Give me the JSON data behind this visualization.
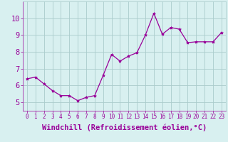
{
  "x": [
    0,
    1,
    2,
    3,
    4,
    5,
    6,
    7,
    8,
    9,
    10,
    11,
    12,
    13,
    14,
    15,
    16,
    17,
    18,
    19,
    20,
    21,
    22,
    23
  ],
  "y": [
    6.4,
    6.5,
    6.1,
    5.7,
    5.4,
    5.4,
    5.1,
    5.3,
    5.4,
    6.6,
    7.85,
    7.45,
    7.75,
    7.95,
    9.0,
    10.3,
    9.05,
    9.45,
    9.35,
    8.55,
    8.6,
    8.6,
    8.6,
    9.15
  ],
  "line_color": "#990099",
  "marker": "*",
  "marker_size": 3,
  "bg_color": "#d8f0f0",
  "grid_color": "#aacccc",
  "xlabel": "Windchill (Refroidissement éolien,°C)",
  "xlabel_color": "#990099",
  "tick_color": "#990099",
  "ylim": [
    4.5,
    11.0
  ],
  "xlim": [
    -0.5,
    23.5
  ],
  "yticks": [
    5,
    6,
    7,
    8,
    9,
    10
  ],
  "xticks": [
    0,
    1,
    2,
    3,
    4,
    5,
    6,
    7,
    8,
    9,
    10,
    11,
    12,
    13,
    14,
    15,
    16,
    17,
    18,
    19,
    20,
    21,
    22,
    23
  ],
  "xtick_labels": [
    "0",
    "1",
    "2",
    "3",
    "4",
    "5",
    "6",
    "7",
    "8",
    "9",
    "10",
    "11",
    "12",
    "13",
    "14",
    "15",
    "16",
    "17",
    "18",
    "19",
    "20",
    "21",
    "22",
    "23"
  ],
  "tick_label_fontsize": 5.5,
  "ytick_label_fontsize": 7.5,
  "xlabel_fontsize": 7.5
}
